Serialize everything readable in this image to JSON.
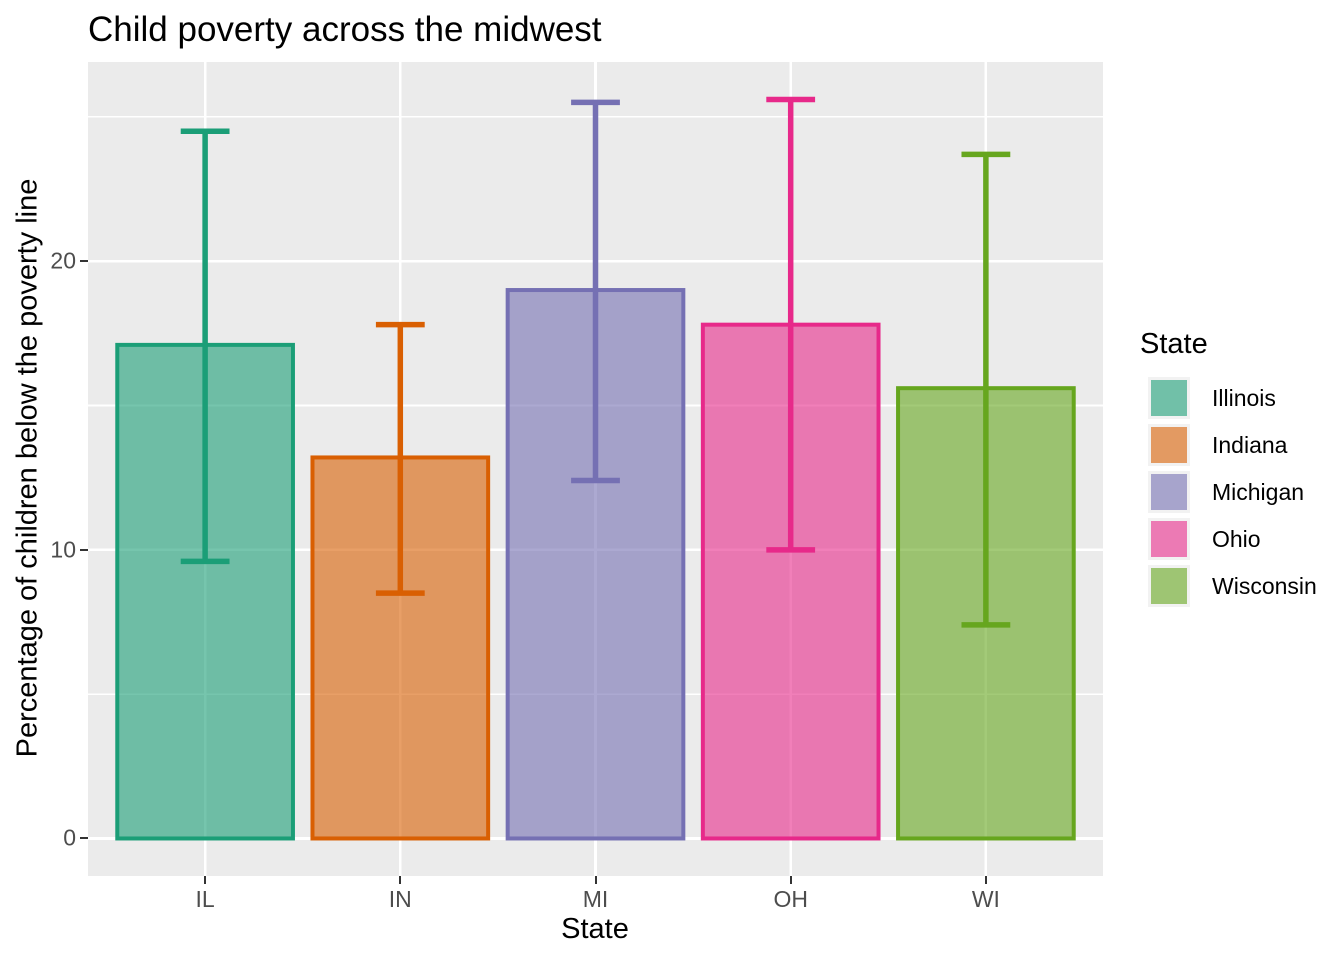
{
  "title": "Child poverty across the midwest",
  "x_axis_title": "State",
  "y_axis_title": "Percentage of children below the poverty line",
  "legend": {
    "title": "State",
    "entries": [
      {
        "label": "Illinois",
        "color": "#1B9E77"
      },
      {
        "label": "Indiana",
        "color": "#D95F02"
      },
      {
        "label": "Michigan",
        "color": "#7570B3"
      },
      {
        "label": "Ohio",
        "color": "#E7298A"
      },
      {
        "label": "Wisconsin",
        "color": "#66A61E"
      }
    ]
  },
  "chart_data": {
    "type": "bar",
    "title": "Child poverty across the midwest",
    "xlabel": "State",
    "ylabel": "Percentage of children below the poverty line",
    "categories": [
      "IL",
      "IN",
      "MI",
      "OH",
      "WI"
    ],
    "series": [
      {
        "name": "Percentage of children below the poverty line",
        "values": [
          17.1,
          13.2,
          19.0,
          17.8,
          15.6
        ]
      }
    ],
    "error_bars": {
      "ymin": [
        9.6,
        8.5,
        12.4,
        10.0,
        7.4
      ],
      "ymax": [
        24.5,
        17.8,
        25.5,
        25.6,
        23.7
      ]
    },
    "colors": [
      "#1B9E77",
      "#D95F02",
      "#7570B3",
      "#E7298A",
      "#66A61E"
    ],
    "fill_alpha": 0.6,
    "bar_width": 0.9,
    "errorbar_cap_width": 0.25,
    "ylim": [
      -1.3,
      26.9
    ],
    "yticks": [
      0,
      10,
      20
    ],
    "ytick_labels": [
      "0",
      "10",
      "20"
    ],
    "yticks_minor": [
      5,
      15,
      25
    ],
    "grid": true,
    "legend_position": "right",
    "panel_background": "#EBEBEB",
    "gridline_color": "#FFFFFF",
    "tick_label_color": "#4D4D4D"
  }
}
